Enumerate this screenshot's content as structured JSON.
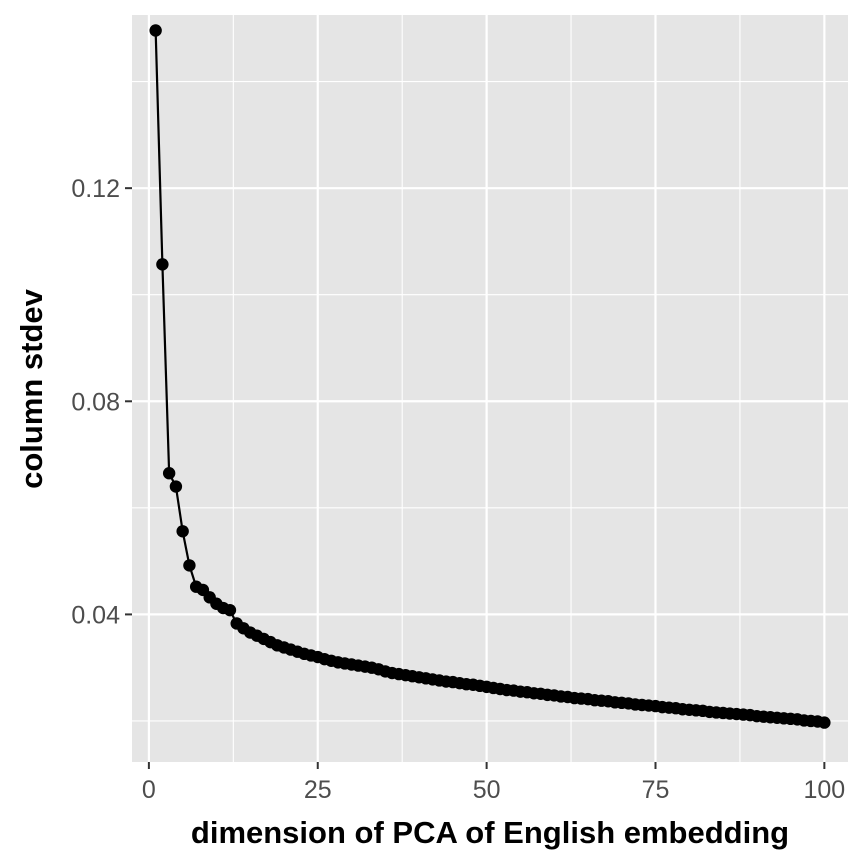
{
  "chart_data": {
    "type": "line",
    "title": "",
    "xlabel": "dimension of PCA of English embedding",
    "ylabel": "column stdev",
    "xlim": [
      -2.5,
      103.5
    ],
    "ylim": [
      0.0123,
      0.1525
    ],
    "x_ticks": [
      0,
      25,
      50,
      75,
      100
    ],
    "x_tick_labels": [
      "0",
      "25",
      "50",
      "75",
      "100"
    ],
    "y_ticks": [
      0.04,
      0.08,
      0.12
    ],
    "y_tick_labels": [
      "0.04",
      "0.08",
      "0.12"
    ],
    "grid": true,
    "background": "#e5e5e5",
    "grid_color": "#ffffff",
    "line_color": "#000000",
    "point_color": "#000000",
    "legend": "none",
    "series": [
      {
        "x": [
          1,
          2,
          3,
          4,
          5,
          6,
          7,
          8,
          9,
          10,
          11,
          12,
          13,
          14,
          15,
          16,
          17,
          18,
          19,
          20,
          21,
          22,
          23,
          24,
          25,
          26,
          27,
          28,
          29,
          30,
          31,
          32,
          33,
          34,
          35,
          36,
          37,
          38,
          39,
          40,
          41,
          42,
          43,
          44,
          45,
          46,
          47,
          48,
          49,
          50,
          51,
          52,
          53,
          54,
          55,
          56,
          57,
          58,
          59,
          60,
          61,
          62,
          63,
          64,
          65,
          66,
          67,
          68,
          69,
          70,
          71,
          72,
          73,
          74,
          75,
          76,
          77,
          78,
          79,
          80,
          81,
          82,
          83,
          84,
          85,
          86,
          87,
          88,
          89,
          90,
          91,
          92,
          93,
          94,
          95,
          96,
          97,
          98,
          99,
          100
        ],
        "values": [
          0.1496,
          0.1057,
          0.0665,
          0.064,
          0.0556,
          0.0492,
          0.0452,
          0.0446,
          0.0432,
          0.042,
          0.0412,
          0.0408,
          0.0383,
          0.0374,
          0.0366,
          0.036,
          0.0354,
          0.0348,
          0.0342,
          0.0338,
          0.0334,
          0.033,
          0.0326,
          0.0323,
          0.032,
          0.0316,
          0.0313,
          0.031,
          0.0308,
          0.0306,
          0.0304,
          0.0302,
          0.03,
          0.0297,
          0.0293,
          0.029,
          0.0288,
          0.0286,
          0.0284,
          0.0282,
          0.028,
          0.0278,
          0.0276,
          0.0274,
          0.0273,
          0.0271,
          0.0269,
          0.0268,
          0.0266,
          0.0264,
          0.0262,
          0.026,
          0.0258,
          0.0257,
          0.0255,
          0.0254,
          0.0252,
          0.0251,
          0.0249,
          0.0248,
          0.0246,
          0.0245,
          0.0243,
          0.0242,
          0.0241,
          0.0239,
          0.0238,
          0.0237,
          0.0235,
          0.0234,
          0.0233,
          0.0231,
          0.023,
          0.0229,
          0.0228,
          0.0226,
          0.0225,
          0.0224,
          0.0222,
          0.0221,
          0.022,
          0.0219,
          0.0217,
          0.0216,
          0.0215,
          0.0214,
          0.0213,
          0.0212,
          0.0211,
          0.0209,
          0.0208,
          0.0207,
          0.0206,
          0.0205,
          0.0204,
          0.0203,
          0.0201,
          0.02,
          0.0199,
          0.0197
        ]
      }
    ]
  }
}
